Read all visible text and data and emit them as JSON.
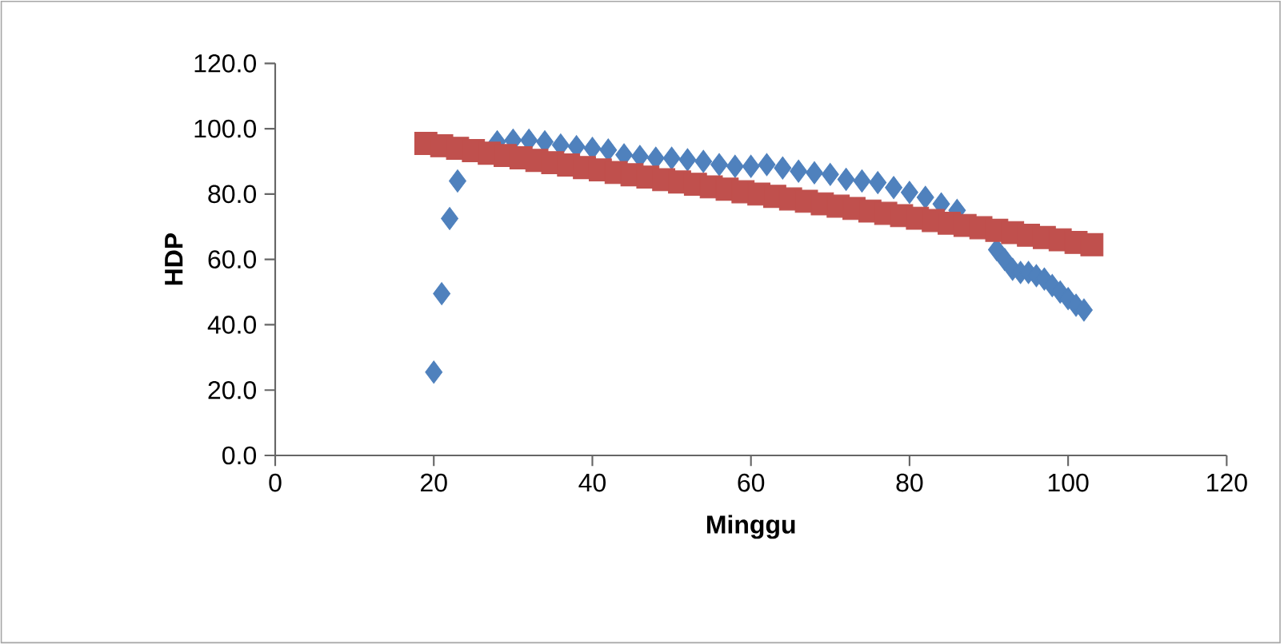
{
  "chart_data": {
    "type": "scatter",
    "xlabel": "Minggu",
    "ylabel": "HDP",
    "xlim": [
      0,
      120
    ],
    "xticks": [
      0,
      20,
      40,
      60,
      80,
      100,
      120
    ],
    "ylim": [
      0,
      120
    ],
    "yticks": [
      {
        "value": 0,
        "label": "0.0"
      },
      {
        "value": 20,
        "label": "20.0"
      },
      {
        "value": 40,
        "label": "40.0"
      },
      {
        "value": 60,
        "label": "60.0"
      },
      {
        "value": 80,
        "label": "80.0"
      },
      {
        "value": 100,
        "label": "100.0"
      },
      {
        "value": 120,
        "label": "120.0"
      }
    ],
    "grid": false,
    "legend": false,
    "series": [
      {
        "color": "#4f81bd",
        "marker": "diamond",
        "x": [
          20,
          21,
          22,
          23,
          24,
          26,
          28,
          30,
          32,
          34,
          36,
          38,
          40,
          42,
          44,
          46,
          48,
          50,
          52,
          54,
          56,
          58,
          60,
          62,
          64,
          66,
          68,
          70,
          72,
          74,
          76,
          78,
          80,
          82,
          84,
          86,
          88,
          89,
          90,
          91,
          92,
          93,
          94,
          95,
          96,
          97,
          98,
          99,
          100,
          101,
          102
        ],
        "values": [
          25.5,
          49.5,
          72.5,
          84,
          null,
          null,
          96,
          96.5,
          96.5,
          96,
          95,
          94.5,
          94,
          93.5,
          92,
          91.5,
          91,
          91,
          90.5,
          90,
          89,
          88.5,
          88.5,
          89,
          88,
          87,
          86.5,
          86,
          84.5,
          84,
          83.5,
          82,
          80.5,
          79,
          77,
          75,
          null,
          null,
          null,
          63,
          60,
          57,
          56,
          56,
          55,
          54,
          52,
          50,
          48,
          46,
          44.5
        ]
      },
      {
        "color": "#c0504d",
        "marker": "square",
        "x": [
          19,
          21,
          23,
          25,
          27,
          29,
          31,
          33,
          35,
          37,
          39,
          41,
          43,
          45,
          47,
          49,
          51,
          53,
          55,
          57,
          59,
          61,
          63,
          65,
          67,
          69,
          71,
          73,
          75,
          77,
          79,
          81,
          83,
          85,
          87,
          89,
          91,
          93,
          95,
          97,
          99,
          101,
          103
        ],
        "values": [
          95.5,
          94.8,
          94.0,
          93.3,
          92.5,
          91.8,
          91.1,
          90.3,
          89.6,
          88.9,
          88.1,
          87.4,
          86.6,
          85.9,
          85.2,
          84.4,
          83.7,
          83.0,
          82.2,
          81.5,
          80.7,
          80.0,
          79.3,
          78.5,
          77.8,
          77.0,
          76.3,
          75.6,
          74.8,
          74.1,
          73.4,
          72.6,
          71.9,
          71.1,
          70.4,
          69.7,
          68.9,
          68.2,
          67.4,
          66.7,
          66.0,
          65.2,
          64.5
        ]
      }
    ]
  }
}
